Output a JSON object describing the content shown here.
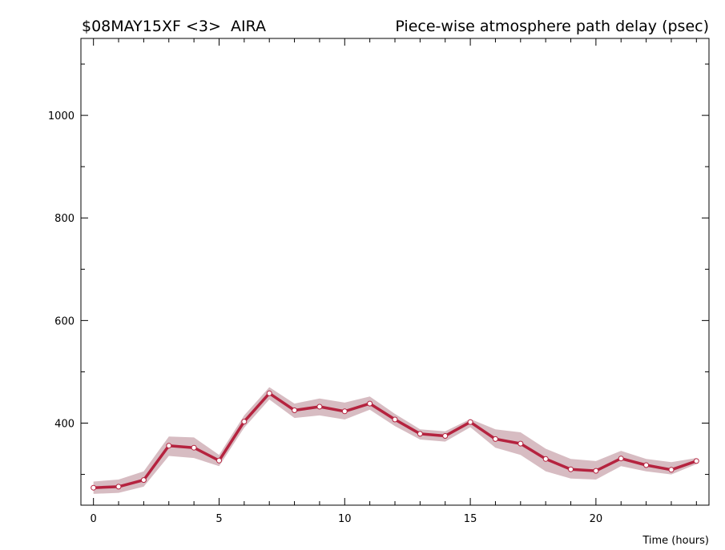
{
  "header": {
    "left": "$08MAY15XF <3>  AIRA",
    "right": "Piece-wise atmosphere path delay (psec)"
  },
  "colors": {
    "line": "#b5233f",
    "band": "#d7bcc2",
    "axis": "#000000",
    "marker_fill": "#ffffff"
  },
  "chart_data": {
    "type": "line",
    "title": "Piece-wise atmosphere path delay (psec)",
    "xlabel": "Time (hours)",
    "ylabel": "",
    "xlim": [
      -0.5,
      24.5
    ],
    "ylim": [
      240,
      1150
    ],
    "grid": false,
    "x_ticks": [
      0,
      5,
      10,
      15,
      20
    ],
    "y_ticks": [
      400,
      600,
      800,
      1000
    ],
    "series": [
      {
        "x": [
          0,
          1,
          2,
          3,
          4,
          5,
          6,
          7,
          8,
          9,
          10,
          11,
          12,
          13,
          14,
          15,
          16,
          17,
          18,
          19,
          20,
          21,
          22,
          23,
          24
        ],
        "y": [
          274,
          276,
          289,
          356,
          352,
          327,
          403,
          458,
          425,
          432,
          423,
          438,
          407,
          379,
          375,
          402,
          369,
          360,
          330,
          310,
          307,
          331,
          318,
          309,
          326
        ],
        "lower": [
          262,
          264,
          276,
          336,
          332,
          316,
          391,
          446,
          410,
          415,
          407,
          426,
          394,
          368,
          364,
          392,
          352,
          338,
          306,
          292,
          290,
          316,
          306,
          300,
          320
        ],
        "upper": [
          286,
          290,
          306,
          374,
          372,
          338,
          415,
          470,
          438,
          448,
          440,
          452,
          418,
          388,
          384,
          408,
          388,
          382,
          350,
          330,
          326,
          346,
          330,
          324,
          332
        ]
      }
    ]
  }
}
